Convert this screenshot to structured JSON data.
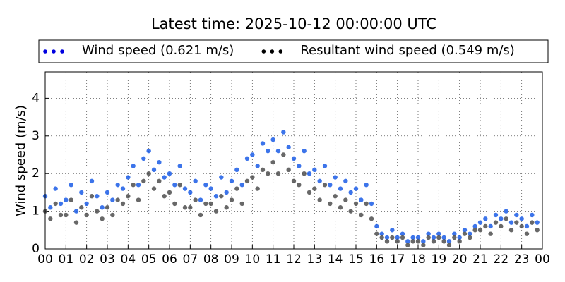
{
  "chart_data": {
    "type": "scatter",
    "title": "Latest time: 2025-10-12 00:00:00 UTC",
    "y_label": "Wind speed (m/s)",
    "x": [
      0,
      0.25,
      0.5,
      0.75,
      1,
      1.25,
      1.5,
      1.75,
      2,
      2.25,
      2.5,
      2.75,
      3,
      3.25,
      3.5,
      3.75,
      4,
      4.25,
      4.5,
      4.75,
      5,
      5.25,
      5.5,
      5.75,
      6,
      6.25,
      6.5,
      6.75,
      7,
      7.25,
      7.5,
      7.75,
      8,
      8.25,
      8.5,
      8.75,
      9,
      9.25,
      9.5,
      9.75,
      10,
      10.25,
      10.5,
      10.75,
      11,
      11.25,
      11.5,
      11.75,
      12,
      12.25,
      12.5,
      12.75,
      13,
      13.25,
      13.5,
      13.75,
      14,
      14.25,
      14.5,
      14.75,
      15,
      15.25,
      15.5,
      15.75,
      16,
      16.25,
      16.5,
      16.75,
      17,
      17.25,
      17.5,
      17.75,
      18,
      18.25,
      18.5,
      18.75,
      19,
      19.25,
      19.5,
      19.75,
      20,
      20.25,
      20.5,
      20.75,
      21,
      21.25,
      21.5,
      21.75,
      22,
      22.25,
      22.5,
      22.75,
      23,
      23.25,
      23.5,
      23.75
    ],
    "series": [
      {
        "name": "Wind speed (0.621 m/s)",
        "color": "#1a5ce6",
        "values": [
          1.4,
          1.1,
          1.6,
          1.2,
          1.3,
          1.7,
          1.0,
          1.5,
          1.2,
          1.8,
          1.4,
          1.1,
          1.5,
          1.3,
          1.7,
          1.6,
          1.9,
          2.2,
          1.7,
          2.4,
          2.6,
          2.1,
          2.3,
          1.9,
          2.0,
          1.7,
          2.2,
          1.6,
          1.5,
          1.8,
          1.3,
          1.7,
          1.6,
          1.4,
          1.9,
          1.5,
          1.8,
          2.1,
          1.7,
          2.4,
          2.5,
          2.2,
          2.8,
          2.6,
          2.9,
          2.6,
          3.1,
          2.7,
          2.4,
          2.2,
          2.6,
          2.0,
          2.1,
          1.8,
          2.2,
          1.7,
          1.9,
          1.6,
          1.8,
          1.5,
          1.6,
          1.3,
          1.7,
          1.2,
          0.6,
          0.4,
          0.3,
          0.5,
          0.3,
          0.4,
          0.2,
          0.3,
          0.3,
          0.2,
          0.4,
          0.3,
          0.4,
          0.3,
          0.2,
          0.4,
          0.3,
          0.5,
          0.4,
          0.6,
          0.7,
          0.8,
          0.6,
          0.9,
          0.8,
          1.0,
          0.7,
          0.9,
          0.8,
          0.6,
          0.9,
          0.7
        ]
      },
      {
        "name": "Resultant wind speed (0.549 m/s)",
        "color": "#4d4d4d",
        "values": [
          1.0,
          0.8,
          1.2,
          0.9,
          0.9,
          1.3,
          0.7,
          1.1,
          0.9,
          1.4,
          1.0,
          0.8,
          1.1,
          0.9,
          1.3,
          1.2,
          1.4,
          1.7,
          1.3,
          1.8,
          2.0,
          1.6,
          1.8,
          1.4,
          1.5,
          1.2,
          1.7,
          1.1,
          1.1,
          1.3,
          0.9,
          1.2,
          1.2,
          1.0,
          1.4,
          1.1,
          1.3,
          1.6,
          1.2,
          1.8,
          1.9,
          1.6,
          2.1,
          2.0,
          2.3,
          2.0,
          2.5,
          2.1,
          1.8,
          1.7,
          2.0,
          1.5,
          1.6,
          1.3,
          1.7,
          1.2,
          1.4,
          1.1,
          1.3,
          1.0,
          1.2,
          0.9,
          1.2,
          0.8,
          0.4,
          0.3,
          0.2,
          0.3,
          0.2,
          0.3,
          0.1,
          0.2,
          0.2,
          0.1,
          0.3,
          0.2,
          0.3,
          0.2,
          0.1,
          0.3,
          0.2,
          0.4,
          0.3,
          0.5,
          0.5,
          0.6,
          0.4,
          0.7,
          0.6,
          0.8,
          0.5,
          0.7,
          0.6,
          0.4,
          0.7,
          0.5
        ]
      }
    ],
    "xlim": [
      0,
      24
    ],
    "xticks": [
      {
        "value": 0,
        "label": "00"
      },
      {
        "value": 1,
        "label": "01"
      },
      {
        "value": 2,
        "label": "02"
      },
      {
        "value": 3,
        "label": "03"
      },
      {
        "value": 4,
        "label": "04"
      },
      {
        "value": 5,
        "label": "05"
      },
      {
        "value": 6,
        "label": "06"
      },
      {
        "value": 7,
        "label": "07"
      },
      {
        "value": 8,
        "label": "08"
      },
      {
        "value": 9,
        "label": "09"
      },
      {
        "value": 10,
        "label": "10"
      },
      {
        "value": 11,
        "label": "11"
      },
      {
        "value": 12,
        "label": "12"
      },
      {
        "value": 13,
        "label": "13"
      },
      {
        "value": 14,
        "label": "14"
      },
      {
        "value": 15,
        "label": "15"
      },
      {
        "value": 16,
        "label": "16"
      },
      {
        "value": 17,
        "label": "17"
      },
      {
        "value": 18,
        "label": "18"
      },
      {
        "value": 19,
        "label": "19"
      },
      {
        "value": 20,
        "label": "20"
      },
      {
        "value": 21,
        "label": "21"
      },
      {
        "value": 22,
        "label": "22"
      },
      {
        "value": 23,
        "label": "23"
      },
      {
        "value": 24,
        "label": "00"
      }
    ],
    "ylim": [
      0,
      4.7
    ],
    "yticks": [
      0,
      1,
      2,
      3,
      4
    ],
    "grid": true
  }
}
